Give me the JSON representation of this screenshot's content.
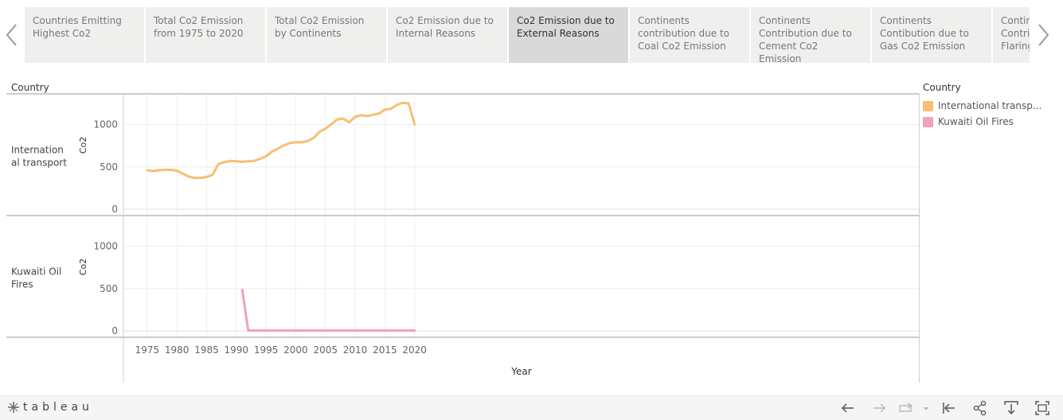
{
  "tabs": [
    {
      "label": "Countries Emitting Highest Co2",
      "active": false
    },
    {
      "label": "Total Co2 Emission from 1975 to 2020",
      "active": false
    },
    {
      "label": "Total Co2 Emission by Continents",
      "active": false
    },
    {
      "label": "Co2 Emission due to Internal Reasons",
      "active": false
    },
    {
      "label": "Co2 Emission due to External Reasons",
      "active": true
    },
    {
      "label": "Continents contribution due to Coal Co2 Emission",
      "active": false
    },
    {
      "label": "Continents Contribution due to Cement Co2 Emission",
      "active": false
    },
    {
      "label": "Continents Contibution due to Gas Co2 Emission",
      "active": false
    },
    {
      "label": "Continents Contribution due to Flaring",
      "active": false
    }
  ],
  "legend": {
    "title": "Country",
    "items": [
      {
        "label": "International transp...",
        "color": "#f8be72"
      },
      {
        "label": "Kuwaiti Oil Fires",
        "color": "#efa2b9"
      }
    ]
  },
  "brand": {
    "label": "tableau"
  },
  "chart_data": {
    "type": "line",
    "title": "",
    "row_header": "Country",
    "xlabel": "Year",
    "ylabel": "Co2",
    "xlim": [
      1971,
      2105
    ],
    "ylim": [
      0,
      1300
    ],
    "x_ticks": [
      1975,
      1980,
      1985,
      1990,
      1995,
      2000,
      2005,
      2010,
      2015,
      2020
    ],
    "y_ticks": [
      0,
      500,
      1000
    ],
    "grid": true,
    "legend_position": "right",
    "panes": [
      {
        "row_label": "International transport",
        "series": {
          "name": "International transport",
          "color": "#f8be72",
          "x": [
            1975,
            1976,
            1977,
            1978,
            1979,
            1980,
            1981,
            1982,
            1983,
            1984,
            1985,
            1986,
            1987,
            1988,
            1989,
            1990,
            1991,
            1992,
            1993,
            1994,
            1995,
            1996,
            1997,
            1998,
            1999,
            2000,
            2001,
            2002,
            2003,
            2004,
            2005,
            2006,
            2007,
            2008,
            2009,
            2010,
            2011,
            2012,
            2013,
            2014,
            2015,
            2016,
            2017,
            2018,
            2019,
            2020
          ],
          "values": [
            460,
            450,
            460,
            465,
            465,
            455,
            420,
            385,
            370,
            370,
            380,
            405,
            535,
            555,
            570,
            565,
            560,
            565,
            570,
            595,
            625,
            680,
            715,
            755,
            780,
            790,
            790,
            805,
            840,
            915,
            950,
            1005,
            1060,
            1070,
            1025,
            1090,
            1110,
            1100,
            1115,
            1130,
            1175,
            1185,
            1230,
            1255,
            1250,
            1000
          ]
        }
      },
      {
        "row_label": "Kuwaiti Oil Fires",
        "series": {
          "name": "Kuwaiti Oil Fires",
          "color": "#efa2b9",
          "x": [
            1991,
            1992,
            1993,
            1994,
            1995,
            1996,
            1997,
            1998,
            1999,
            2000,
            2001,
            2002,
            2003,
            2004,
            2005,
            2006,
            2007,
            2008,
            2009,
            2010,
            2011,
            2012,
            2013,
            2014,
            2015,
            2016,
            2017,
            2018,
            2019,
            2020
          ],
          "values": [
            485,
            5,
            5,
            5,
            5,
            5,
            5,
            5,
            5,
            5,
            5,
            5,
            5,
            5,
            5,
            5,
            5,
            5,
            5,
            5,
            5,
            5,
            5,
            5,
            5,
            5,
            5,
            5,
            5,
            5
          ]
        }
      }
    ]
  }
}
